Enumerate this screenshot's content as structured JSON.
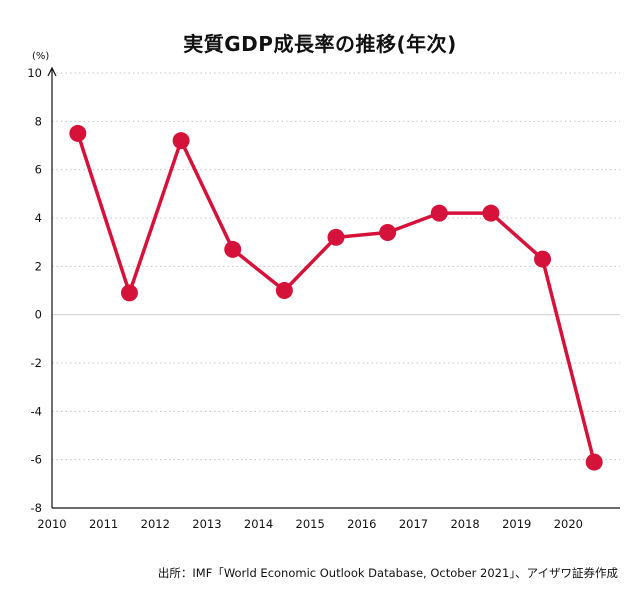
{
  "chart_data": {
    "type": "line",
    "title": "実質GDP成長率の推移(年次)",
    "ylabel": "(%)",
    "xlabel": "",
    "x_tick_labels": [
      "2010",
      "2011",
      "2012",
      "2013",
      "2014",
      "2015",
      "2016",
      "2017",
      "2018",
      "2019",
      "2020"
    ],
    "y_ticks": [
      -8,
      -6,
      -4,
      -2,
      0,
      2,
      4,
      6,
      8,
      10
    ],
    "y_tick_labels": [
      "-8",
      "-6",
      "-4",
      "-2",
      "0",
      "2",
      "4",
      "6",
      "8",
      "10"
    ],
    "ylim": [
      -8,
      10
    ],
    "xlim": [
      2010,
      2021
    ],
    "grid": "horizontal dotted",
    "series": [
      {
        "name": "実質GDP成長率",
        "color": "#d4123a",
        "x": [
          2010.5,
          2011.5,
          2012.5,
          2013.5,
          2014.5,
          2015.5,
          2016.5,
          2017.5,
          2018.5,
          2019.5,
          2020.5
        ],
        "values": [
          7.5,
          0.9,
          7.2,
          2.7,
          1.0,
          3.2,
          3.4,
          4.2,
          4.2,
          2.3,
          -6.1
        ]
      }
    ],
    "source": "出所：IMF「World Economic Outlook Database, October 2021」、アイザワ証券作成"
  }
}
